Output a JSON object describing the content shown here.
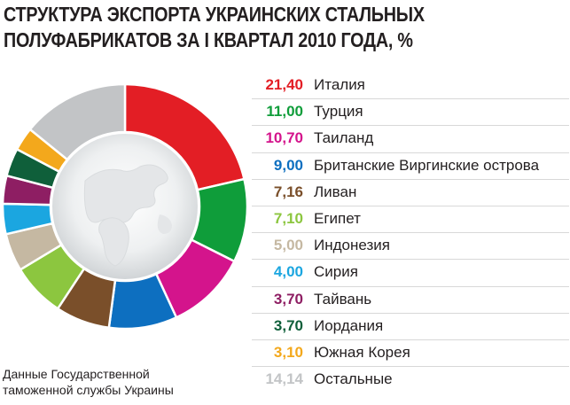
{
  "title_line1": "СТРУКТУРА ЭКСПОРТА УКРАИНСКИХ СТАЛЬНЫХ",
  "title_line2": "ПОЛУФАБРИКАТОВ ЗА I КВАРТАЛ 2010 ГОДА, %",
  "source_line1": "Данные Государственной",
  "source_line2": "таможенной службы Украины",
  "chart_data": {
    "type": "pie",
    "title": "СТРУКТУРА ЭКСПОРТА УКРАИНСКИХ СТАЛЬНЫХ ПОЛУФАБРИКАТОВ ЗА I КВАРТАЛ 2010 ГОДА, %",
    "donut": true,
    "slices": [
      {
        "label": "Италия",
        "value": 21.4,
        "value_text": "21,40",
        "color": "#e31e25"
      },
      {
        "label": "Турция",
        "value": 11.0,
        "value_text": "11,00",
        "color": "#0f9d3a"
      },
      {
        "label": "Таиланд",
        "value": 10.7,
        "value_text": "10,70",
        "color": "#d4148c"
      },
      {
        "label": "Британские Виргинские острова",
        "value": 9.0,
        "value_text": "9,00",
        "color": "#0d6fc0"
      },
      {
        "label": "Ливан",
        "value": 7.16,
        "value_text": "7,16",
        "color": "#7a4f2a"
      },
      {
        "label": "Египет",
        "value": 7.1,
        "value_text": "7,10",
        "color": "#8cc63f"
      },
      {
        "label": "Индонезия",
        "value": 5.0,
        "value_text": "5,00",
        "color": "#c5b8a2"
      },
      {
        "label": "Сирия",
        "value": 4.0,
        "value_text": "4,00",
        "color": "#1ba6e0"
      },
      {
        "label": "Тайвань",
        "value": 3.7,
        "value_text": "3,70",
        "color": "#8e1e63"
      },
      {
        "label": "Иордания",
        "value": 3.7,
        "value_text": "3,70",
        "color": "#0f5f3a"
      },
      {
        "label": "Южная Корея",
        "value": 3.1,
        "value_text": "3,10",
        "color": "#f3a81c"
      },
      {
        "label": "Остальные",
        "value": 14.14,
        "value_text": "14,14",
        "color": "#c2c4c6"
      }
    ]
  }
}
